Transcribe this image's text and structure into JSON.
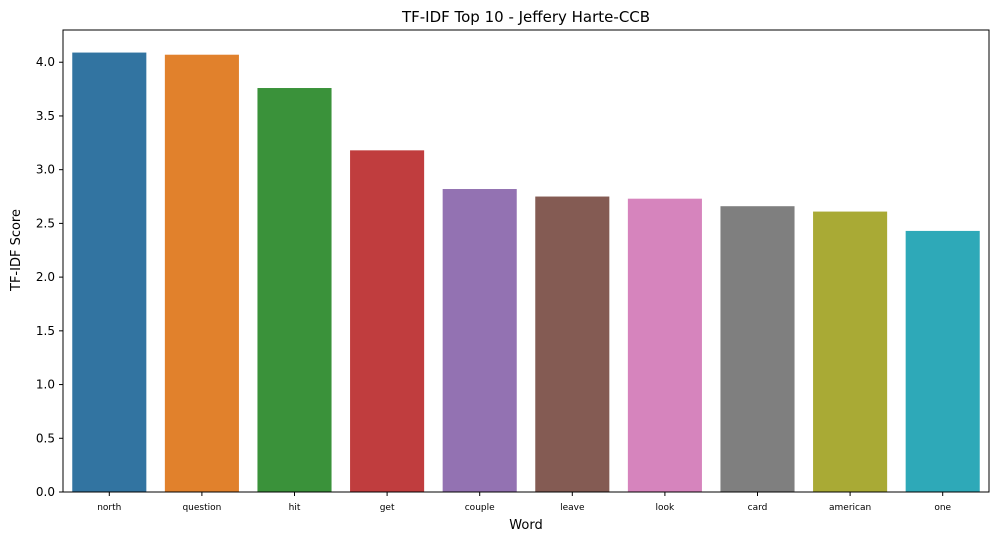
{
  "chart_data": {
    "type": "bar",
    "title": "TF-IDF Top 10 - Jeffery Harte-CCB",
    "xlabel": "Word",
    "ylabel": "TF-IDF Score",
    "categories": [
      "north",
      "question",
      "hit",
      "get",
      "couple",
      "leave",
      "look",
      "card",
      "american",
      "one"
    ],
    "values": [
      4.09,
      4.07,
      3.76,
      3.18,
      2.82,
      2.75,
      2.73,
      2.66,
      2.61,
      2.43
    ],
    "colors": [
      "#3274a1",
      "#e1812c",
      "#3a923a",
      "#c03d3e",
      "#9372b2",
      "#845b53",
      "#d684bd",
      "#7f7f7f",
      "#a9aa35",
      "#2ea9b8"
    ],
    "ylim": [
      0,
      4.3
    ],
    "yticks": [
      0.0,
      0.5,
      1.0,
      1.5,
      2.0,
      2.5,
      3.0,
      3.5,
      4.0
    ],
    "ytick_labels": [
      "0.0",
      "0.5",
      "1.0",
      "1.5",
      "2.0",
      "2.5",
      "3.0",
      "3.5",
      "4.0"
    ],
    "grid": false,
    "legend": "none"
  }
}
